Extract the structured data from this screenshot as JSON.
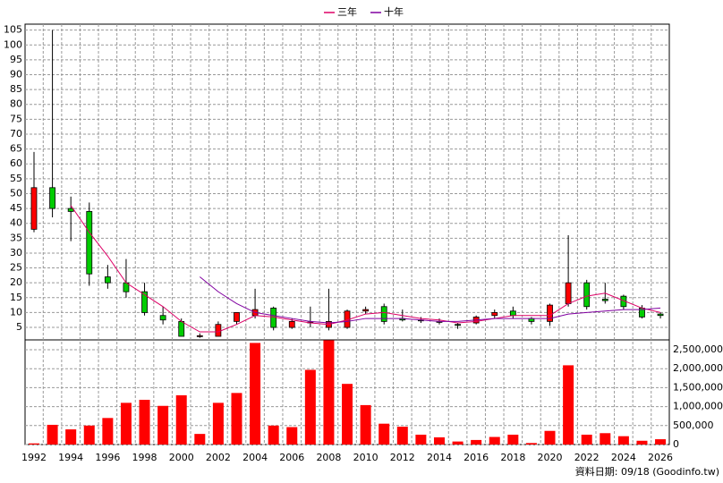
{
  "chart_data": [
    {
      "type": "candlestick",
      "open": [
        38,
        52,
        45,
        44,
        22,
        20,
        17,
        9,
        7,
        2,
        2,
        7,
        9,
        11.5,
        5,
        6.5,
        5,
        5,
        10.5,
        12,
        8,
        7.5,
        7,
        6,
        6.5,
        9,
        10.5,
        8,
        7,
        13,
        20,
        14.5,
        15.5,
        11.5,
        9.5
      ],
      "high": [
        64,
        105,
        49,
        47,
        26,
        28,
        20,
        12,
        8,
        3,
        7,
        10,
        18,
        12,
        8,
        12,
        18,
        11,
        12,
        13,
        11,
        8.5,
        8,
        6.5,
        9,
        11,
        12,
        8.5,
        13,
        36,
        21,
        20,
        16,
        12.5,
        10
      ],
      "low": [
        37,
        42,
        34,
        19,
        18,
        15,
        9,
        6,
        2,
        1.5,
        2,
        6,
        8,
        4,
        4.5,
        5,
        4,
        4.5,
        9.5,
        6,
        7,
        6.5,
        6,
        4.5,
        6,
        8,
        8,
        6,
        5.5,
        12,
        11,
        13,
        11,
        8,
        8
      ],
      "close": [
        52,
        45,
        44,
        23,
        20,
        17,
        10,
        7.5,
        2,
        2.2,
        6,
        10,
        11,
        5,
        7,
        6.8,
        7,
        10.5,
        11,
        7,
        7.5,
        7.2,
        6.8,
        5.8,
        8.5,
        10,
        9,
        7,
        12.5,
        20,
        12,
        14,
        12,
        8.5,
        9
      ],
      "up_color": "#ff0000",
      "down_color": "#00cc00",
      "series": [
        {
          "name": "三年",
          "color": "#dd0066",
          "values": [
            null,
            null,
            46,
            37,
            29,
            20,
            16,
            12,
            7,
            3.5,
            3.5,
            6,
            9,
            8.5,
            7.5,
            6.5,
            6,
            7.5,
            9.5,
            10,
            9,
            8,
            7.5,
            6.5,
            7,
            8,
            9,
            9,
            9,
            13,
            15.5,
            16.5,
            14,
            11.5,
            10
          ]
        },
        {
          "name": "十年",
          "color": "#8000a0",
          "values": [
            null,
            null,
            null,
            null,
            null,
            null,
            null,
            null,
            null,
            22,
            17,
            13,
            10,
            9,
            8,
            7,
            6.5,
            7,
            8,
            8,
            8,
            7.5,
            7,
            7,
            7.5,
            8,
            8,
            8,
            8,
            9.5,
            10,
            10.5,
            11,
            11,
            11.5
          ]
        }
      ],
      "ylim": [
        0.8,
        107
      ],
      "yticks": [
        5,
        10,
        15,
        20,
        25,
        30,
        35,
        40,
        45,
        50,
        55,
        60,
        65,
        70,
        75,
        80,
        85,
        90,
        95,
        100,
        105
      ],
      "grid": true,
      "legend": "top"
    },
    {
      "type": "bar",
      "categories": [
        "1992",
        null,
        "1994",
        null,
        "1996",
        null,
        "1998",
        null,
        "2000",
        null,
        "2002",
        null,
        "2004",
        null,
        "2006",
        null,
        "2008",
        null,
        "2010",
        null,
        "2012",
        null,
        "2014",
        null,
        "2016",
        null,
        "2018",
        null,
        "2020",
        null,
        "2022",
        null,
        "2024",
        null,
        "2026"
      ],
      "values": [
        30000,
        520000,
        400000,
        500000,
        700000,
        1100000,
        1180000,
        1020000,
        1300000,
        280000,
        1100000,
        1360000,
        2680000,
        500000,
        460000,
        1970000,
        2750000,
        1600000,
        1040000,
        550000,
        470000,
        260000,
        190000,
        80000,
        120000,
        200000,
        260000,
        40000,
        360000,
        2090000,
        260000,
        300000,
        220000,
        100000,
        140000
      ],
      "color": "#ff0000",
      "ylim": [
        0,
        2760000
      ],
      "yticks": [
        0,
        {
          "value": 500000,
          "label": "500,000"
        },
        {
          "value": 1000000,
          "label": "1,000,000"
        },
        {
          "value": 1500000,
          "label": "1,500,000"
        },
        {
          "value": 2000000,
          "label": "2,000,000"
        },
        {
          "value": 2500000,
          "label": "2,500,000"
        }
      ],
      "grid": true,
      "source": "資料日期: 09/18  (Goodinfo.tw)"
    }
  ]
}
